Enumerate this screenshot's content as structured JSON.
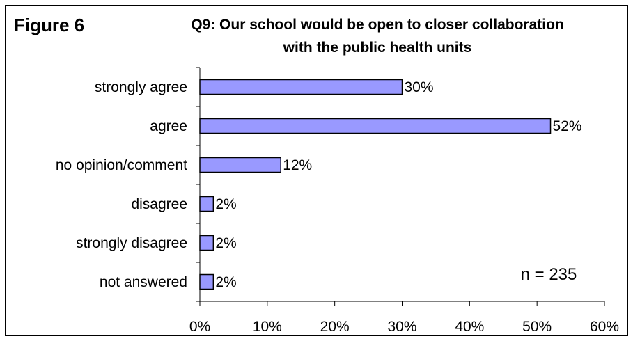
{
  "figure_label": "Figure 6",
  "title_line1": "Q9: Our school would be open to closer collaboration",
  "title_line2": "with the public health units",
  "annotation": "n = 235",
  "colors": {
    "bar_fill": "#9999ff",
    "bar_stroke": "#000000",
    "background": "#ffffff",
    "frame": "#000000"
  },
  "chart_data": {
    "type": "bar",
    "orientation": "horizontal",
    "categories": [
      "strongly agree",
      "agree",
      "no opinion/comment",
      "disagree",
      "strongly disagree",
      "not answered"
    ],
    "values": [
      30,
      52,
      12,
      2,
      2,
      2
    ],
    "value_labels": [
      "30%",
      "52%",
      "12%",
      "2%",
      "2%",
      "2%"
    ],
    "xlim": [
      0,
      60
    ],
    "xticks": [
      0,
      10,
      20,
      30,
      40,
      50,
      60
    ],
    "xtick_labels": [
      "0%",
      "10%",
      "20%",
      "30%",
      "40%",
      "50%",
      "60%"
    ],
    "grid": false,
    "legend": "none"
  }
}
